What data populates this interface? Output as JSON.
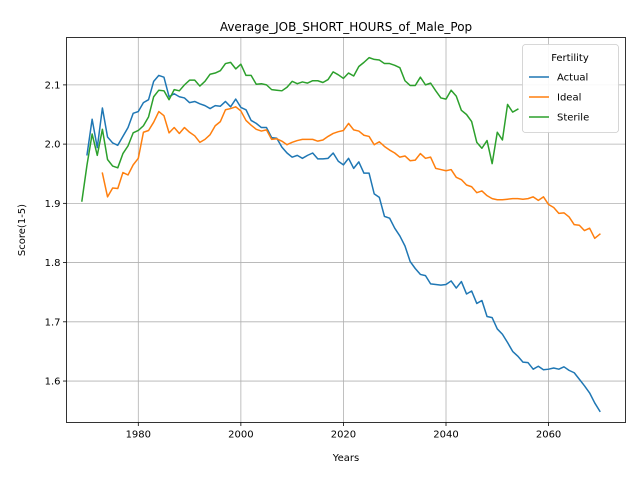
{
  "chart_data": {
    "type": "line",
    "title": "Average_JOB_SHORT_HOURS_of_Male_Pop",
    "xlabel": "Years",
    "ylabel": "Score(1-5)",
    "xlim": [
      1966,
      2075
    ],
    "ylim": [
      1.53,
      2.18
    ],
    "xticks": [
      1980,
      2000,
      2020,
      2040,
      2060
    ],
    "yticks": [
      1.6,
      1.7,
      1.8,
      1.9,
      2.0,
      2.1
    ],
    "ytick_labels": [
      "1.6",
      "1.7",
      "1.8",
      "1.9",
      "2.0",
      "2.1"
    ],
    "grid": true,
    "legend": {
      "title": "Fertility",
      "position": "top-right"
    },
    "series": [
      {
        "name": "Actual",
        "color": "#1f77b4",
        "points": [
          [
            1970,
            1.982
          ],
          [
            1971,
            2.042
          ],
          [
            1972,
            1.994
          ],
          [
            1973,
            2.061
          ],
          [
            1974,
            2.012
          ],
          [
            1975,
            2.002
          ],
          [
            1976,
            1.998
          ],
          [
            1977,
            2.013
          ],
          [
            1978,
            2.028
          ],
          [
            1979,
            2.052
          ],
          [
            1980,
            2.055
          ],
          [
            1981,
            2.07
          ],
          [
            1982,
            2.075
          ],
          [
            1983,
            2.106
          ],
          [
            1984,
            2.116
          ],
          [
            1985,
            2.113
          ],
          [
            1986,
            2.08
          ],
          [
            1987,
            2.085
          ],
          [
            1988,
            2.08
          ],
          [
            1989,
            2.078
          ],
          [
            1990,
            2.07
          ],
          [
            1991,
            2.072
          ],
          [
            1992,
            2.068
          ],
          [
            1993,
            2.065
          ],
          [
            1994,
            2.06
          ],
          [
            1995,
            2.065
          ],
          [
            1996,
            2.064
          ],
          [
            1997,
            2.072
          ],
          [
            1998,
            2.063
          ],
          [
            1999,
            2.076
          ],
          [
            2000,
            2.062
          ],
          [
            2001,
            2.058
          ],
          [
            2002,
            2.04
          ],
          [
            2003,
            2.035
          ],
          [
            2004,
            2.028
          ],
          [
            2005,
            2.028
          ],
          [
            2006,
            2.011
          ],
          [
            2007,
            2.01
          ],
          [
            2008,
            1.995
          ],
          [
            2009,
            1.985
          ],
          [
            2010,
            1.978
          ],
          [
            2011,
            1.981
          ],
          [
            2012,
            1.976
          ],
          [
            2013,
            1.981
          ],
          [
            2014,
            1.985
          ],
          [
            2015,
            1.975
          ],
          [
            2016,
            1.975
          ],
          [
            2017,
            1.976
          ],
          [
            2018,
            1.985
          ],
          [
            2019,
            1.971
          ],
          [
            2020,
            1.965
          ],
          [
            2021,
            1.976
          ],
          [
            2022,
            1.959
          ],
          [
            2023,
            1.97
          ],
          [
            2024,
            1.951
          ],
          [
            2025,
            1.951
          ],
          [
            2026,
            1.916
          ],
          [
            2027,
            1.91
          ],
          [
            2028,
            1.878
          ],
          [
            2029,
            1.875
          ],
          [
            2030,
            1.858
          ],
          [
            2031,
            1.845
          ],
          [
            2032,
            1.828
          ],
          [
            2033,
            1.802
          ],
          [
            2034,
            1.79
          ],
          [
            2035,
            1.78
          ],
          [
            2036,
            1.778
          ],
          [
            2037,
            1.764
          ],
          [
            2038,
            1.763
          ],
          [
            2039,
            1.762
          ],
          [
            2040,
            1.763
          ],
          [
            2041,
            1.769
          ],
          [
            2042,
            1.757
          ],
          [
            2043,
            1.768
          ],
          [
            2044,
            1.747
          ],
          [
            2045,
            1.752
          ],
          [
            2046,
            1.731
          ],
          [
            2047,
            1.736
          ],
          [
            2048,
            1.709
          ],
          [
            2049,
            1.707
          ],
          [
            2050,
            1.688
          ],
          [
            2051,
            1.679
          ],
          [
            2052,
            1.665
          ],
          [
            2053,
            1.65
          ],
          [
            2054,
            1.642
          ],
          [
            2055,
            1.632
          ],
          [
            2056,
            1.631
          ],
          [
            2057,
            1.62
          ],
          [
            2058,
            1.625
          ],
          [
            2059,
            1.619
          ],
          [
            2060,
            1.62
          ],
          [
            2061,
            1.622
          ],
          [
            2062,
            1.62
          ],
          [
            2063,
            1.624
          ],
          [
            2064,
            1.618
          ],
          [
            2065,
            1.614
          ],
          [
            2066,
            1.603
          ],
          [
            2067,
            1.592
          ],
          [
            2068,
            1.58
          ],
          [
            2069,
            1.563
          ],
          [
            2070,
            1.549
          ]
        ]
      },
      {
        "name": "Ideal",
        "color": "#ff7f0e",
        "points": [
          [
            1973,
            1.951
          ],
          [
            1974,
            1.911
          ],
          [
            1975,
            1.926
          ],
          [
            1976,
            1.925
          ],
          [
            1977,
            1.952
          ],
          [
            1978,
            1.948
          ],
          [
            1979,
            1.965
          ],
          [
            1980,
            1.976
          ],
          [
            1981,
            2.02
          ],
          [
            1982,
            2.023
          ],
          [
            1983,
            2.037
          ],
          [
            1984,
            2.055
          ],
          [
            1985,
            2.048
          ],
          [
            1986,
            2.019
          ],
          [
            1987,
            2.028
          ],
          [
            1988,
            2.018
          ],
          [
            1989,
            2.028
          ],
          [
            1990,
            2.02
          ],
          [
            1991,
            2.014
          ],
          [
            1992,
            2.003
          ],
          [
            1993,
            2.008
          ],
          [
            1994,
            2.016
          ],
          [
            1995,
            2.031
          ],
          [
            1996,
            2.038
          ],
          [
            1997,
            2.058
          ],
          [
            1998,
            2.06
          ],
          [
            1999,
            2.063
          ],
          [
            2000,
            2.056
          ],
          [
            2001,
            2.04
          ],
          [
            2002,
            2.032
          ],
          [
            2003,
            2.025
          ],
          [
            2004,
            2.022
          ],
          [
            2005,
            2.024
          ],
          [
            2006,
            2.008
          ],
          [
            2007,
            2.009
          ],
          [
            2008,
            2.005
          ],
          [
            2009,
            1.999
          ],
          [
            2010,
            2.003
          ],
          [
            2011,
            2.006
          ],
          [
            2012,
            2.008
          ],
          [
            2013,
            2.008
          ],
          [
            2014,
            2.008
          ],
          [
            2015,
            2.005
          ],
          [
            2016,
            2.007
          ],
          [
            2017,
            2.013
          ],
          [
            2018,
            2.018
          ],
          [
            2019,
            2.021
          ],
          [
            2020,
            2.023
          ],
          [
            2021,
            2.035
          ],
          [
            2022,
            2.024
          ],
          [
            2023,
            2.022
          ],
          [
            2024,
            2.015
          ],
          [
            2025,
            2.013
          ],
          [
            2026,
            1.999
          ],
          [
            2027,
            2.004
          ],
          [
            2028,
            1.996
          ],
          [
            2029,
            1.99
          ],
          [
            2030,
            1.985
          ],
          [
            2031,
            1.978
          ],
          [
            2032,
            1.98
          ],
          [
            2033,
            1.972
          ],
          [
            2034,
            1.973
          ],
          [
            2035,
            1.984
          ],
          [
            2036,
            1.976
          ],
          [
            2037,
            1.978
          ],
          [
            2038,
            1.959
          ],
          [
            2039,
            1.957
          ],
          [
            2040,
            1.955
          ],
          [
            2041,
            1.957
          ],
          [
            2042,
            1.944
          ],
          [
            2043,
            1.94
          ],
          [
            2044,
            1.931
          ],
          [
            2045,
            1.928
          ],
          [
            2046,
            1.918
          ],
          [
            2047,
            1.921
          ],
          [
            2048,
            1.913
          ],
          [
            2049,
            1.908
          ],
          [
            2050,
            1.906
          ],
          [
            2051,
            1.906
          ],
          [
            2052,
            1.907
          ],
          [
            2053,
            1.908
          ],
          [
            2054,
            1.908
          ],
          [
            2055,
            1.907
          ],
          [
            2056,
            1.908
          ],
          [
            2057,
            1.911
          ],
          [
            2058,
            1.905
          ],
          [
            2059,
            1.911
          ],
          [
            2060,
            1.898
          ],
          [
            2061,
            1.893
          ],
          [
            2062,
            1.883
          ],
          [
            2063,
            1.884
          ],
          [
            2064,
            1.877
          ],
          [
            2065,
            1.864
          ],
          [
            2066,
            1.863
          ],
          [
            2067,
            1.854
          ],
          [
            2068,
            1.858
          ],
          [
            2069,
            1.841
          ],
          [
            2070,
            1.848
          ]
        ]
      },
      {
        "name": "Sterile",
        "color": "#2ca02c",
        "points": [
          [
            1969,
            1.904
          ],
          [
            1970,
            1.965
          ],
          [
            1971,
            2.017
          ],
          [
            1972,
            1.981
          ],
          [
            1973,
            2.025
          ],
          [
            1974,
            1.974
          ],
          [
            1975,
            1.963
          ],
          [
            1976,
            1.96
          ],
          [
            1977,
            1.984
          ],
          [
            1978,
            1.997
          ],
          [
            1979,
            2.019
          ],
          [
            1980,
            2.023
          ],
          [
            1981,
            2.031
          ],
          [
            1982,
            2.046
          ],
          [
            1983,
            2.08
          ],
          [
            1984,
            2.091
          ],
          [
            1985,
            2.09
          ],
          [
            1986,
            2.075
          ],
          [
            1987,
            2.092
          ],
          [
            1988,
            2.09
          ],
          [
            1989,
            2.1
          ],
          [
            1990,
            2.108
          ],
          [
            1991,
            2.108
          ],
          [
            1992,
            2.098
          ],
          [
            1993,
            2.106
          ],
          [
            1994,
            2.118
          ],
          [
            1995,
            2.12
          ],
          [
            1996,
            2.124
          ],
          [
            1997,
            2.136
          ],
          [
            1998,
            2.138
          ],
          [
            1999,
            2.127
          ],
          [
            2000,
            2.135
          ],
          [
            2001,
            2.116
          ],
          [
            2002,
            2.116
          ],
          [
            2003,
            2.101
          ],
          [
            2004,
            2.102
          ],
          [
            2005,
            2.1
          ],
          [
            2006,
            2.092
          ],
          [
            2007,
            2.091
          ],
          [
            2008,
            2.09
          ],
          [
            2009,
            2.096
          ],
          [
            2010,
            2.106
          ],
          [
            2011,
            2.102
          ],
          [
            2012,
            2.105
          ],
          [
            2013,
            2.103
          ],
          [
            2014,
            2.107
          ],
          [
            2015,
            2.107
          ],
          [
            2016,
            2.104
          ],
          [
            2017,
            2.109
          ],
          [
            2018,
            2.122
          ],
          [
            2019,
            2.117
          ],
          [
            2020,
            2.111
          ],
          [
            2021,
            2.12
          ],
          [
            2022,
            2.115
          ],
          [
            2023,
            2.131
          ],
          [
            2024,
            2.138
          ],
          [
            2025,
            2.146
          ],
          [
            2026,
            2.143
          ],
          [
            2027,
            2.142
          ],
          [
            2028,
            2.136
          ],
          [
            2029,
            2.136
          ],
          [
            2030,
            2.133
          ],
          [
            2031,
            2.129
          ],
          [
            2032,
            2.107
          ],
          [
            2033,
            2.099
          ],
          [
            2034,
            2.099
          ],
          [
            2035,
            2.113
          ],
          [
            2036,
            2.1
          ],
          [
            2037,
            2.103
          ],
          [
            2038,
            2.09
          ],
          [
            2039,
            2.078
          ],
          [
            2040,
            2.076
          ],
          [
            2041,
            2.091
          ],
          [
            2042,
            2.081
          ],
          [
            2043,
            2.057
          ],
          [
            2044,
            2.05
          ],
          [
            2045,
            2.038
          ],
          [
            2046,
            2.003
          ],
          [
            2047,
            1.993
          ],
          [
            2048,
            2.006
          ],
          [
            2049,
            1.967
          ],
          [
            2050,
            2.02
          ],
          [
            2051,
            2.007
          ],
          [
            2052,
            2.067
          ],
          [
            2053,
            2.054
          ],
          [
            2054,
            2.059
          ]
        ]
      }
    ]
  }
}
